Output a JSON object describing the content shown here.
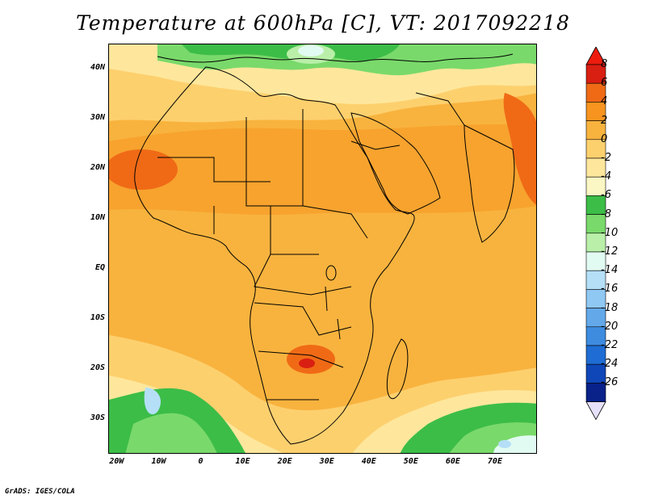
{
  "title": "Temperature at 600hPa [C], VT: 2017092218",
  "credit": "GrADS: IGES/COLA",
  "map": {
    "lon_range": [
      -22,
      80
    ],
    "lat_range": [
      -37,
      45
    ],
    "lat_ticks": [
      {
        "value": 40,
        "label": "40N"
      },
      {
        "value": 30,
        "label": "30N"
      },
      {
        "value": 20,
        "label": "20N"
      },
      {
        "value": 10,
        "label": "10N"
      },
      {
        "value": 0,
        "label": "EQ"
      },
      {
        "value": -10,
        "label": "10S"
      },
      {
        "value": -20,
        "label": "20S"
      },
      {
        "value": -30,
        "label": "30S"
      }
    ],
    "lon_ticks": [
      {
        "value": -20,
        "label": "20W"
      },
      {
        "value": -10,
        "label": "10W"
      },
      {
        "value": 0,
        "label": "0"
      },
      {
        "value": 10,
        "label": "10E"
      },
      {
        "value": 20,
        "label": "20E"
      },
      {
        "value": 30,
        "label": "30E"
      },
      {
        "value": 40,
        "label": "40E"
      },
      {
        "value": 50,
        "label": "50E"
      },
      {
        "value": 60,
        "label": "60E"
      },
      {
        "value": 70,
        "label": "70E"
      }
    ]
  },
  "colorbar": {
    "levels": [
      {
        "label": "8",
        "color": "#d91e12"
      },
      {
        "label": "6",
        "color": "#f06a16"
      },
      {
        "label": "4",
        "color": "#f7941f"
      },
      {
        "label": "2",
        "color": "#f8b33e"
      },
      {
        "label": "0",
        "color": "#fdd06e"
      },
      {
        "label": "-2",
        "color": "#fee79c"
      },
      {
        "label": "-4",
        "color": "#fbf7c4"
      },
      {
        "label": "-6",
        "color": "#3cbd48"
      },
      {
        "label": "-8",
        "color": "#7ad96b"
      },
      {
        "label": "-10",
        "color": "#b9efa8"
      },
      {
        "label": "-12",
        "color": "#e2fbf2"
      },
      {
        "label": "-14",
        "color": "#b4dff7"
      },
      {
        "label": "-16",
        "color": "#8fc8f3"
      },
      {
        "label": "-18",
        "color": "#63a9ea"
      },
      {
        "label": "-20",
        "color": "#3d8ce0"
      },
      {
        "label": "-22",
        "color": "#1f6dd4"
      },
      {
        "label": "-24",
        "color": "#0f47b8"
      },
      {
        "label": "-26",
        "color": "#08228a"
      }
    ],
    "top_cap_color": "#ed1c0f",
    "bottom_cap_color": "#e6e0fb"
  }
}
